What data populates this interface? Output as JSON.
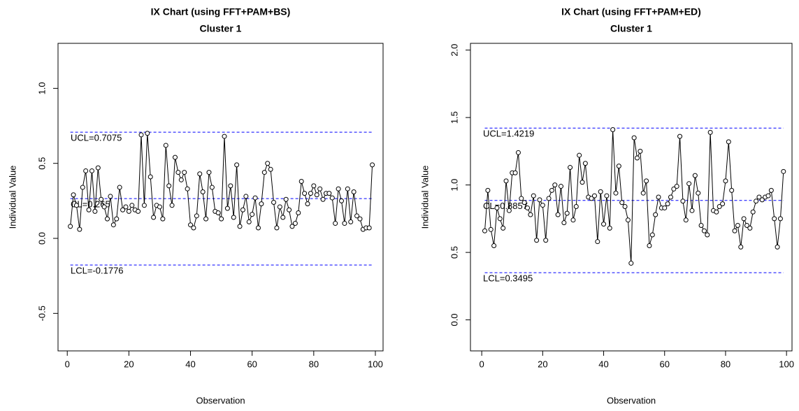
{
  "chart_data": [
    {
      "type": "line",
      "title": "IX Chart (using FFT+PAM+BS)",
      "subtitle": "Cluster 1",
      "xlabel": "Observation",
      "ylabel": "Individual Value",
      "xlim": [
        -3,
        102.5
      ],
      "ylim": [
        -0.75,
        1.3
      ],
      "xticks": [
        0,
        20,
        40,
        60,
        80,
        100
      ],
      "yticks": [
        {
          "value": -0.5,
          "label": "-0.5"
        },
        {
          "value": 0,
          "label": "0.0"
        },
        0.5,
        {
          "value": 1,
          "label": "1.0"
        }
      ],
      "x": [
        1,
        2,
        3,
        4,
        5,
        6,
        7,
        8,
        9,
        10,
        11,
        12,
        13,
        14,
        15,
        16,
        17,
        18,
        19,
        20,
        21,
        22,
        23,
        24,
        25,
        26,
        27,
        28,
        29,
        30,
        31,
        32,
        33,
        34,
        35,
        36,
        37,
        38,
        39,
        40,
        41,
        42,
        43,
        44,
        45,
        46,
        47,
        48,
        49,
        50,
        51,
        52,
        53,
        54,
        55,
        56,
        57,
        58,
        59,
        60,
        61,
        62,
        63,
        64,
        65,
        66,
        67,
        68,
        69,
        70,
        71,
        72,
        73,
        74,
        75,
        76,
        77,
        78,
        79,
        80,
        81,
        82,
        83,
        84,
        85,
        86,
        87,
        88,
        89,
        90,
        91,
        92,
        93,
        94,
        95,
        96,
        97,
        98,
        99
      ],
      "series": [
        {
          "color": "#000000",
          "values": [
            0.08,
            0.29,
            0.22,
            0.06,
            0.34,
            0.45,
            0.19,
            0.45,
            0.18,
            0.47,
            0.26,
            0.21,
            0.13,
            0.28,
            0.09,
            0.13,
            0.34,
            0.19,
            0.21,
            0.18,
            0.22,
            0.19,
            0.18,
            0.69,
            0.22,
            0.7,
            0.41,
            0.14,
            0.22,
            0.21,
            0.13,
            0.62,
            0.35,
            0.22,
            0.54,
            0.44,
            0.39,
            0.44,
            0.33,
            0.09,
            0.07,
            0.15,
            0.43,
            0.31,
            0.13,
            0.44,
            0.34,
            0.18,
            0.17,
            0.13,
            0.68,
            0.2,
            0.35,
            0.14,
            0.49,
            0.08,
            0.19,
            0.28,
            0.11,
            0.16,
            0.27,
            0.07,
            0.23,
            0.44,
            0.5,
            0.46,
            0.24,
            0.07,
            0.21,
            0.14,
            0.26,
            0.19,
            0.08,
            0.1,
            0.17,
            0.38,
            0.3,
            0.23,
            0.3,
            0.35,
            0.29,
            0.33,
            0.26,
            0.3,
            0.3,
            0.27,
            0.1,
            0.33,
            0.25,
            0.1,
            0.33,
            0.11,
            0.31,
            0.15,
            0.13,
            0.06,
            0.07,
            0.07,
            0.49
          ]
        }
      ],
      "limits": [
        {
          "label": "UCL=0.7075",
          "value": 0.7075
        },
        {
          "label": "CL=0.265",
          "value": 0.265
        },
        {
          "label": "LCL=-0.1776",
          "value": -0.1776
        }
      ],
      "limit_color": "#0000ff"
    },
    {
      "type": "line",
      "title": "IX Chart (using FFT+PAM+ED)",
      "subtitle": "Cluster 1",
      "xlabel": "Observation",
      "ylabel": "Individual Value",
      "xlim": [
        -3.7,
        101.8
      ],
      "ylim": [
        -0.23,
        2.05
      ],
      "xticks": [
        0,
        20,
        40,
        60,
        80,
        100
      ],
      "yticks": [
        {
          "value": 0,
          "label": "0.0"
        },
        0.5,
        {
          "value": 1,
          "label": "1.0"
        },
        {
          "value": 1.5,
          "label": "1.5"
        },
        {
          "value": 2,
          "label": "2.0"
        }
      ],
      "x": [
        1,
        2,
        3,
        4,
        5,
        6,
        7,
        8,
        9,
        10,
        11,
        12,
        13,
        14,
        15,
        16,
        17,
        18,
        19,
        20,
        21,
        22,
        23,
        24,
        25,
        26,
        27,
        28,
        29,
        30,
        31,
        32,
        33,
        34,
        35,
        36,
        37,
        38,
        39,
        40,
        41,
        42,
        43,
        44,
        45,
        46,
        47,
        48,
        49,
        50,
        51,
        52,
        53,
        54,
        55,
        56,
        57,
        58,
        59,
        60,
        61,
        62,
        63,
        64,
        65,
        66,
        67,
        68,
        69,
        70,
        71,
        72,
        73,
        74,
        75,
        76,
        77,
        78,
        79,
        80,
        81,
        82,
        83,
        84,
        85,
        86,
        87,
        88,
        89,
        90,
        91,
        92,
        93,
        94,
        95,
        96,
        97,
        98,
        99
      ],
      "series": [
        {
          "color": "#000000",
          "values": [
            0.66,
            0.96,
            0.67,
            0.55,
            0.83,
            0.75,
            0.68,
            1.03,
            0.81,
            1.09,
            1.09,
            1.24,
            0.9,
            0.87,
            0.83,
            0.78,
            0.92,
            0.59,
            0.89,
            0.85,
            0.59,
            0.9,
            0.96,
            1.0,
            0.78,
            0.99,
            0.72,
            0.79,
            1.13,
            0.74,
            0.84,
            1.22,
            1.02,
            1.16,
            0.91,
            0.9,
            0.92,
            0.58,
            0.95,
            0.71,
            0.92,
            0.68,
            1.41,
            0.94,
            1.14,
            0.87,
            0.84,
            0.74,
            0.42,
            1.35,
            1.2,
            1.25,
            0.94,
            1.03,
            0.55,
            0.63,
            0.78,
            0.91,
            0.83,
            0.83,
            0.86,
            0.91,
            0.97,
            0.99,
            1.36,
            0.88,
            0.74,
            1.01,
            0.81,
            1.07,
            0.94,
            0.7,
            0.66,
            0.63,
            1.39,
            0.81,
            0.8,
            0.84,
            0.86,
            1.03,
            1.32,
            0.96,
            0.66,
            0.7,
            0.54,
            0.75,
            0.7,
            0.68,
            0.8,
            0.88,
            0.91,
            0.89,
            0.91,
            0.92,
            0.96,
            0.75,
            0.54,
            0.75,
            1.1
          ]
        }
      ],
      "limits": [
        {
          "label": "UCL=1.4219",
          "value": 1.4219
        },
        {
          "label": "CL=0.8857",
          "value": 0.8857
        },
        {
          "label": "LCL=0.3495",
          "value": 0.3495
        }
      ],
      "limit_color": "#0000ff"
    }
  ]
}
